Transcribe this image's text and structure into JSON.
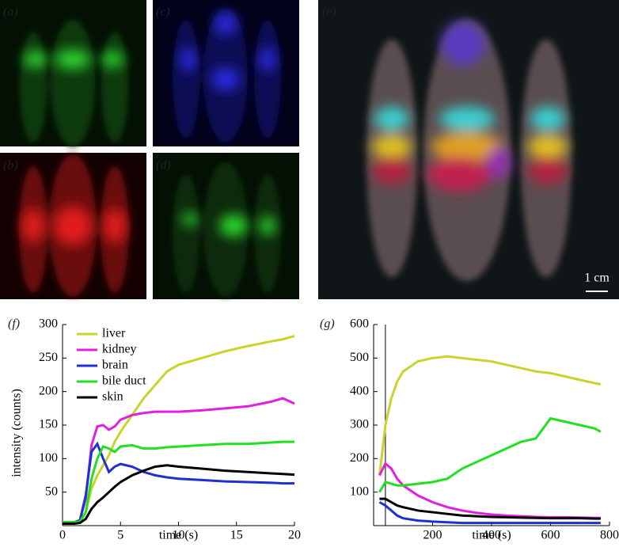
{
  "panel_labels": [
    "(a)",
    "(b)",
    "(c)",
    "(d)",
    "(e)"
  ],
  "scale_bar": "1 cm",
  "chart_data": [
    {
      "type": "line",
      "label": "(f)",
      "xlabel": "time (s)",
      "ylabel": "intensity (counts)",
      "xlim": [
        0,
        20
      ],
      "xticks": [
        0,
        5,
        10,
        15,
        20
      ],
      "ylim": [
        0,
        300
      ],
      "yticks": [
        50,
        100,
        150,
        200,
        250,
        300
      ],
      "x": [
        0,
        1,
        1.5,
        2,
        2.5,
        3,
        3.5,
        4,
        4.5,
        5,
        6,
        7,
        8,
        9,
        10,
        12,
        14,
        16,
        18,
        19,
        20
      ],
      "series": [
        {
          "name": "liver",
          "color": "#c8d42a",
          "values": [
            5,
            5,
            7,
            20,
            55,
            75,
            90,
            105,
            125,
            140,
            165,
            190,
            210,
            230,
            240,
            250,
            260,
            268,
            275,
            278,
            283
          ]
        },
        {
          "name": "kidney",
          "color": "#e020e0",
          "values": [
            5,
            5,
            8,
            40,
            120,
            148,
            150,
            143,
            148,
            158,
            165,
            168,
            170,
            170,
            170,
            172,
            175,
            178,
            185,
            190,
            182
          ]
        },
        {
          "name": "brain",
          "color": "#2030d0",
          "values": [
            5,
            5,
            8,
            45,
            110,
            122,
            100,
            80,
            88,
            92,
            88,
            80,
            75,
            72,
            70,
            68,
            66,
            65,
            64,
            63,
            63
          ]
        },
        {
          "name": "bile duct",
          "color": "#20e020",
          "values": [
            5,
            5,
            6,
            20,
            70,
            100,
            118,
            115,
            110,
            118,
            120,
            115,
            115,
            117,
            118,
            120,
            122,
            122,
            124,
            125,
            125
          ]
        },
        {
          "name": "skin",
          "color": "#000000",
          "values": [
            3,
            3,
            4,
            10,
            25,
            35,
            42,
            50,
            58,
            65,
            75,
            82,
            88,
            90,
            88,
            85,
            82,
            80,
            78,
            77,
            76
          ]
        }
      ]
    },
    {
      "type": "line",
      "label": "(g)",
      "xlabel": "time (s)",
      "vline_x": 40,
      "xlim": [
        0,
        800
      ],
      "xticks": [
        200,
        400,
        600,
        800
      ],
      "ylim": [
        0,
        600
      ],
      "yticks": [
        100,
        200,
        300,
        400,
        500,
        600
      ],
      "x": [
        20,
        40,
        60,
        80,
        100,
        150,
        200,
        250,
        300,
        350,
        400,
        450,
        500,
        550,
        600,
        650,
        700,
        750,
        770
      ],
      "series": [
        {
          "color": "#c8d42a",
          "values": [
            150,
            300,
            380,
            430,
            460,
            490,
            500,
            505,
            500,
            495,
            490,
            480,
            470,
            460,
            455,
            445,
            435,
            425,
            422
          ]
        },
        {
          "color": "#e020e0",
          "values": [
            150,
            185,
            170,
            140,
            120,
            90,
            70,
            55,
            45,
            38,
            33,
            30,
            28,
            26,
            25,
            25,
            24,
            23,
            23
          ]
        },
        {
          "color": "#20e020",
          "values": [
            100,
            130,
            125,
            120,
            120,
            125,
            130,
            140,
            170,
            190,
            210,
            230,
            250,
            260,
            320,
            310,
            300,
            290,
            280
          ]
        },
        {
          "color": "#000000",
          "values": [
            80,
            80,
            70,
            60,
            55,
            45,
            40,
            35,
            30,
            28,
            26,
            25,
            24,
            23,
            22,
            22,
            22,
            21,
            21
          ]
        },
        {
          "color": "#2030d0",
          "values": [
            70,
            60,
            45,
            30,
            22,
            15,
            12,
            10,
            8,
            8,
            8,
            8,
            8,
            8,
            8,
            8,
            8,
            8,
            8
          ]
        }
      ]
    }
  ]
}
